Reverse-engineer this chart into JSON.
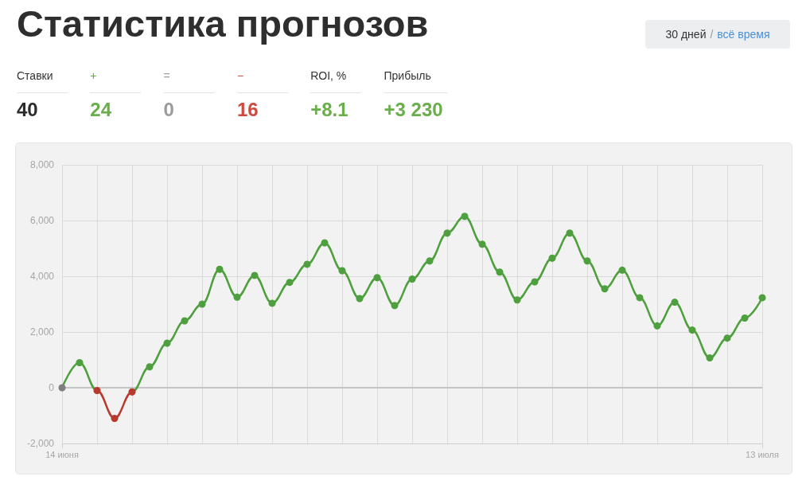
{
  "chart_data": {
    "type": "line",
    "title": "Статистика прогнозов",
    "annotations": [
      "30 дней",
      "/",
      "всё время",
      "Ставки",
      "40",
      "+",
      "24",
      "=",
      "0",
      "−",
      "16",
      "ROI, %",
      "+8.1",
      "Прибыль",
      "+3 230"
    ],
    "categories": [
      "14 июня",
      null,
      null,
      null,
      null,
      null,
      null,
      null,
      null,
      null,
      null,
      null,
      null,
      null,
      null,
      null,
      null,
      null,
      null,
      null,
      null,
      null,
      null,
      null,
      null,
      null,
      null,
      null,
      null,
      null,
      null,
      null,
      null,
      null,
      null,
      null,
      null,
      null,
      null,
      null,
      "13 июля"
    ],
    "values": [
      0,
      900,
      -100,
      -1100,
      -150,
      750,
      1600,
      2400,
      3000,
      4250,
      3250,
      4030,
      3030,
      3780,
      4430,
      5200,
      4200,
      3200,
      3950,
      2950,
      3900,
      4550,
      5550,
      6150,
      5150,
      4150,
      3150,
      3800,
      4650,
      5550,
      4550,
      3550,
      4220,
      3230,
      2220,
      3070,
      2070,
      1070,
      1780,
      2500,
      3230
    ],
    "color": "#4e9f3d",
    "colors": [
      "#7f7f7f",
      "#4e9f3d",
      "#b83a2e",
      "#b83a2e",
      "#b83a2e",
      "#4e9f3d",
      "#4e9f3d",
      "#4e9f3d",
      "#4e9f3d",
      "#4e9f3d",
      "#4e9f3d",
      "#4e9f3d",
      "#4e9f3d",
      "#4e9f3d",
      "#4e9f3d",
      "#4e9f3d",
      "#4e9f3d",
      "#4e9f3d",
      "#4e9f3d",
      "#4e9f3d",
      "#4e9f3d",
      "#4e9f3d",
      "#4e9f3d",
      "#4e9f3d",
      "#4e9f3d",
      "#4e9f3d",
      "#4e9f3d",
      "#4e9f3d",
      "#4e9f3d",
      "#4e9f3d",
      "#4e9f3d",
      "#4e9f3d",
      "#4e9f3d",
      "#4e9f3d",
      "#4e9f3d",
      "#4e9f3d",
      "#4e9f3d",
      "#4e9f3d",
      "#4e9f3d",
      "#4e9f3d",
      "#4e9f3d"
    ],
    "ylim": [
      -2000,
      8000
    ],
    "yticks": [
      {
        "value": -2000,
        "label": "-2,000"
      },
      0,
      {
        "value": 2000,
        "label": "2,000"
      },
      {
        "value": 4000,
        "label": "4,000"
      },
      {
        "value": 6000,
        "label": "6,000"
      },
      {
        "value": 8000,
        "label": "8,000"
      }
    ],
    "grid": true,
    "marker": "circle",
    "line_style": "solid",
    "ref_lines": [
      {
        "axis": "y",
        "value": 0,
        "color": "#c4c4c4"
      }
    ]
  }
}
